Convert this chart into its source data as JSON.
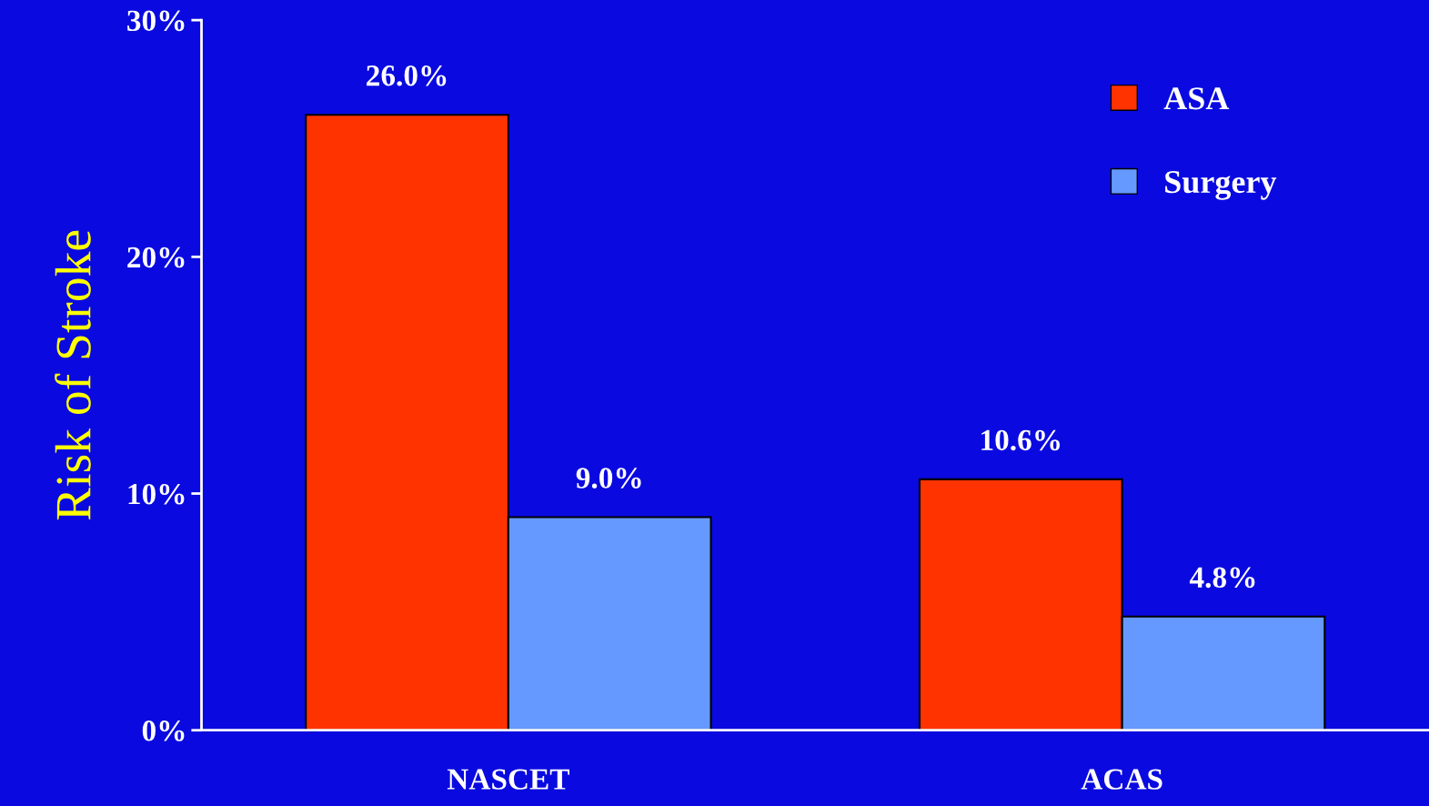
{
  "chart_data": {
    "type": "bar",
    "ylabel": "Risk of Stroke",
    "categories": [
      "NASCET",
      "ACAS"
    ],
    "series": [
      {
        "name": "ASA",
        "color": "#ff3300",
        "values": [
          26.0,
          10.6
        ],
        "value_labels": [
          "26.0%",
          "10.6%"
        ]
      },
      {
        "name": "Surgery",
        "color": "#6699ff",
        "values": [
          9.0,
          4.8
        ],
        "value_labels": [
          "9.0%",
          "4.8%"
        ]
      }
    ],
    "ylim": [
      0,
      30
    ],
    "yticks": [
      {
        "value": 0,
        "label": "0%"
      },
      {
        "value": 10,
        "label": "10%"
      },
      {
        "value": 20,
        "label": "20%"
      },
      {
        "value": 30,
        "label": "30%"
      }
    ],
    "grid": false,
    "legend": "top right"
  }
}
